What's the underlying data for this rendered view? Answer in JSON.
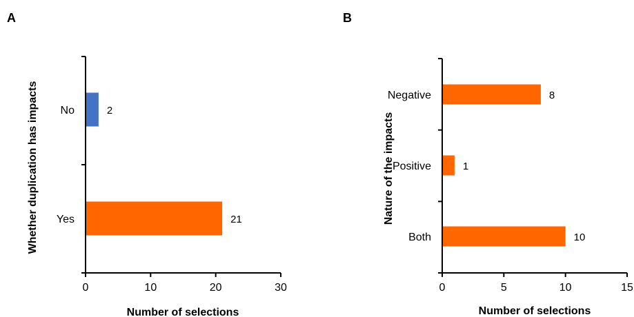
{
  "chart_data": [
    {
      "panel": "A",
      "type": "bar",
      "orientation": "horizontal",
      "categories": [
        "No",
        "Yes"
      ],
      "values": [
        2,
        21
      ],
      "bar_colors": [
        "#4472C4",
        "#FF6600"
      ],
      "xlabel": "Number of selections",
      "ylabel": "Whether duplication has impacts",
      "xlim": [
        0,
        30
      ],
      "xticks": [
        0,
        10,
        20,
        30
      ],
      "grid": false,
      "data_labels": true
    },
    {
      "panel": "B",
      "type": "bar",
      "orientation": "horizontal",
      "categories": [
        "Negative",
        "Positive",
        "Both"
      ],
      "values": [
        8,
        1,
        10
      ],
      "bar_colors": [
        "#FF6600",
        "#FF6600",
        "#FF6600"
      ],
      "xlabel": "Number of selections",
      "ylabel": "Nature of the impacts",
      "xlim": [
        0,
        15
      ],
      "xticks": [
        0,
        5,
        10,
        15
      ],
      "grid": false,
      "data_labels": true
    }
  ]
}
